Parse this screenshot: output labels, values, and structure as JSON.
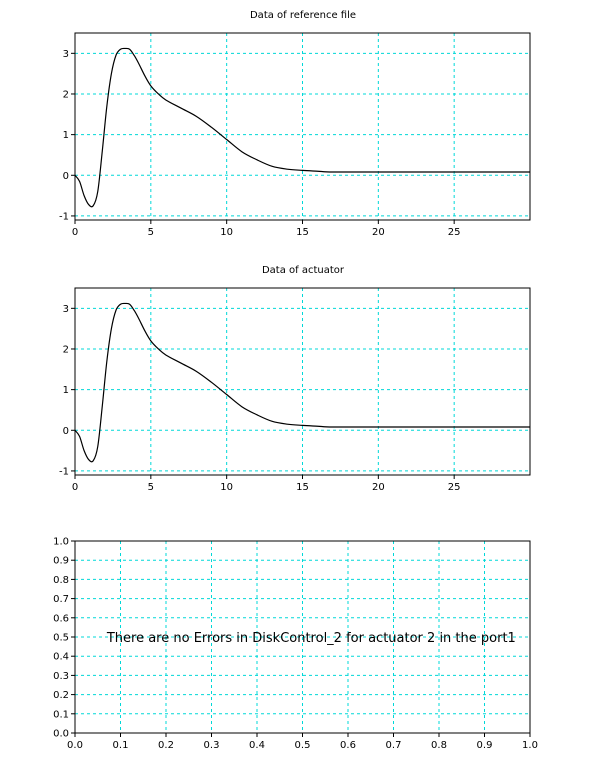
{
  "chart_data": [
    {
      "type": "line",
      "title": "Data of reference file",
      "xlim": [
        0,
        30
      ],
      "ylim": [
        -1.1,
        3.5
      ],
      "xticks": [
        0,
        5,
        10,
        15,
        20,
        25
      ],
      "yticks": [
        -1,
        0,
        1,
        2,
        3
      ],
      "grid": true,
      "series": [
        {
          "x": [
            0,
            0.3,
            0.6,
            0.9,
            1.2,
            1.5,
            1.8,
            2.1,
            2.4,
            2.7,
            3.0,
            3.3,
            3.6,
            3.9,
            4.2,
            4.6,
            5.0,
            5.5,
            6.0,
            7.0,
            8.0,
            9.0,
            10.0,
            11.0,
            12.0,
            13.0,
            14.0,
            15.0,
            16.0,
            17.0,
            20.0,
            25.0,
            30.0
          ],
          "y": [
            0,
            -0.15,
            -0.5,
            -0.72,
            -0.75,
            -0.4,
            0.6,
            1.7,
            2.5,
            2.95,
            3.1,
            3.12,
            3.1,
            2.95,
            2.75,
            2.45,
            2.2,
            2.0,
            1.85,
            1.65,
            1.45,
            1.18,
            0.88,
            0.58,
            0.38,
            0.22,
            0.15,
            0.12,
            0.1,
            0.08,
            0.08,
            0.08,
            0.08
          ]
        }
      ]
    },
    {
      "type": "line",
      "title": "Data of actuator",
      "xlim": [
        0,
        30
      ],
      "ylim": [
        -1.1,
        3.5
      ],
      "xticks": [
        0,
        5,
        10,
        15,
        20,
        25
      ],
      "yticks": [
        -1,
        0,
        1,
        2,
        3
      ],
      "grid": true,
      "series": [
        {
          "x": [
            0,
            0.3,
            0.6,
            0.9,
            1.2,
            1.5,
            1.8,
            2.1,
            2.4,
            2.7,
            3.0,
            3.3,
            3.6,
            3.9,
            4.2,
            4.6,
            5.0,
            5.5,
            6.0,
            7.0,
            8.0,
            9.0,
            10.0,
            11.0,
            12.0,
            13.0,
            14.0,
            15.0,
            16.0,
            17.0,
            20.0,
            25.0,
            30.0
          ],
          "y": [
            0,
            -0.15,
            -0.5,
            -0.72,
            -0.75,
            -0.4,
            0.6,
            1.7,
            2.5,
            2.95,
            3.1,
            3.12,
            3.1,
            2.95,
            2.75,
            2.45,
            2.2,
            2.0,
            1.85,
            1.65,
            1.45,
            1.18,
            0.88,
            0.58,
            0.38,
            0.22,
            0.15,
            0.12,
            0.1,
            0.08,
            0.08,
            0.08,
            0.08
          ]
        }
      ]
    },
    {
      "type": "line",
      "title": "",
      "xlim": [
        0,
        1
      ],
      "ylim": [
        0,
        1
      ],
      "xticks": [
        "0.0",
        "0.1",
        "0.2",
        "0.3",
        "0.4",
        "0.5",
        "0.6",
        "0.7",
        "0.8",
        "0.9",
        "1.0"
      ],
      "yticks": [
        "0.0",
        "0.1",
        "0.2",
        "0.3",
        "0.4",
        "0.5",
        "0.6",
        "0.7",
        "0.8",
        "0.9",
        "1.0"
      ],
      "grid": true,
      "series": [],
      "annotation": {
        "text": "There are no Errors in DiskControl_2 for actuator 2 in the port1",
        "x": 0.07,
        "y": 0.5
      }
    }
  ]
}
